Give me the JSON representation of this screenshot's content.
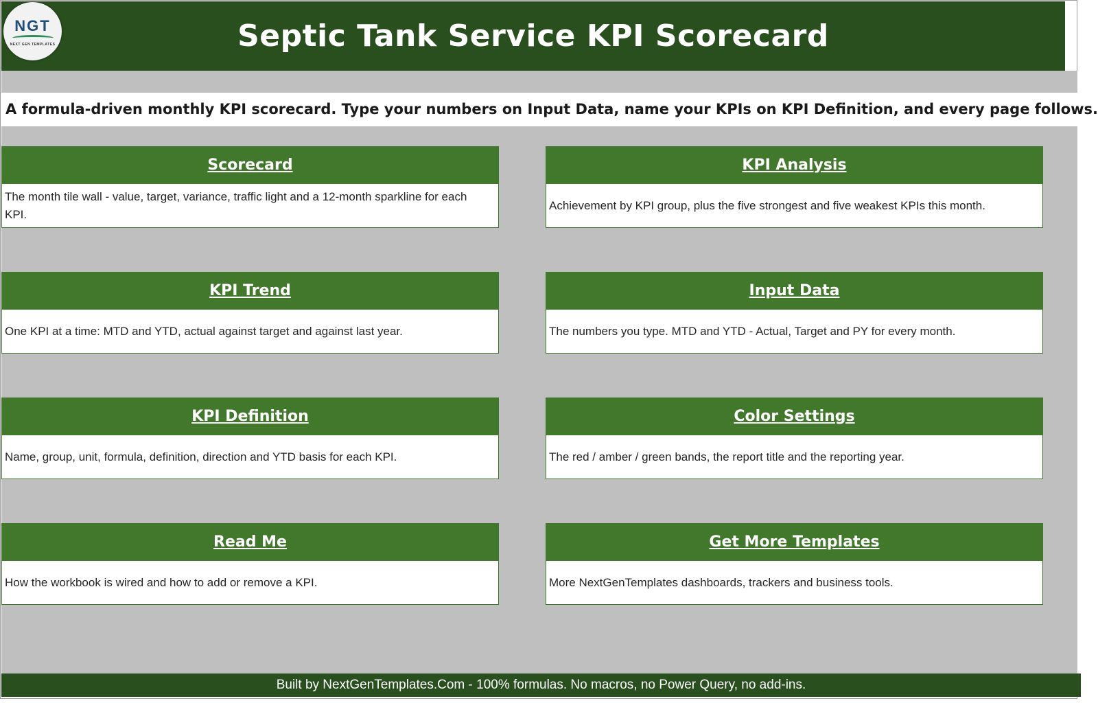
{
  "header": {
    "logo": {
      "text": "NGT",
      "subtext": "NEXT GEN TEMPLATES"
    },
    "title": "Septic Tank Service KPI Scorecard"
  },
  "subtitle": "A formula-driven monthly KPI scorecard. Type your numbers on Input Data, name your KPIs on KPI Definition, and every page follows.",
  "cards": [
    {
      "title": "Scorecard",
      "description": "The month tile wall - value, target, variance, traffic light and a 12-month sparkline for each KPI."
    },
    {
      "title": "KPI Analysis",
      "description": "Achievement by KPI group, plus the five strongest and five weakest KPIs this month."
    },
    {
      "title": "KPI Trend",
      "description": "One KPI at a time: MTD and YTD, actual against target and against last year."
    },
    {
      "title": "Input Data",
      "description": "The numbers you type. MTD and YTD - Actual, Target and PY for every month."
    },
    {
      "title": "KPI Definition",
      "description": "Name, group, unit, formula, definition, direction and YTD basis for each KPI."
    },
    {
      "title": "Color Settings",
      "description": "The red / amber / green bands, the report title and the reporting year."
    },
    {
      "title": "Read Me",
      "description": "How the workbook is wired and how to add or remove a KPI."
    },
    {
      "title": "Get More Templates",
      "description": "More NextGenTemplates dashboards, trackers and business tools."
    }
  ],
  "footer": "Built by NextGenTemplates.Com  -  100% formulas. No macros, no Power Query, no add-ins.",
  "colors": {
    "header_bg": "#294f1f",
    "card_header_bg": "#42782b",
    "canvas_bg": "#bfbfbf"
  }
}
